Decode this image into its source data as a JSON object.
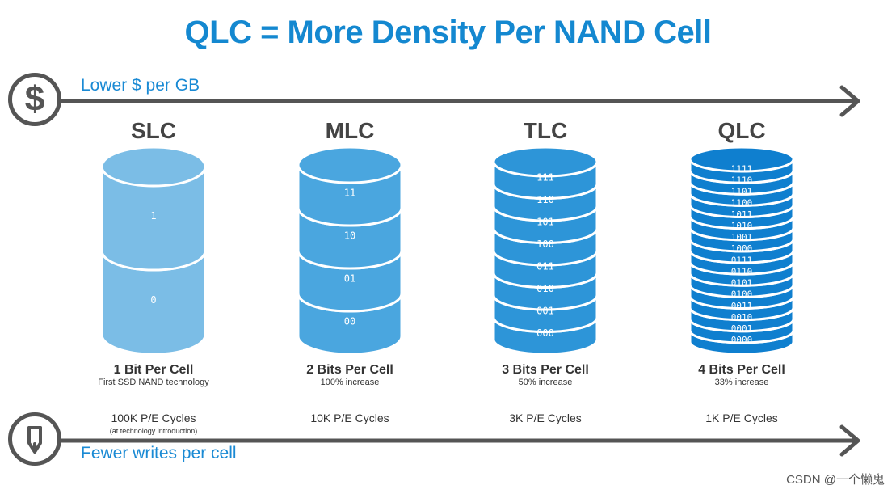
{
  "title": "QLC = More Density Per NAND Cell",
  "top_axis": {
    "label": "Lower $ per GB",
    "icon": "dollar-icon"
  },
  "bottom_axis": {
    "label": "Fewer writes per cell",
    "icon": "pencil-icon"
  },
  "watermark": "CSDN @一个懒鬼",
  "colors": {
    "title": "#1488d0",
    "arrow": "#555555",
    "slc": "#7bbde6",
    "mlc": "#4aa6df",
    "tlc": "#2d95d8",
    "qlc": "#0f7fcf"
  },
  "columns": [
    {
      "name": "SLC",
      "bits_title": "1 Bit Per Cell",
      "bits_sub": "First SSD NAND technology",
      "pe_cycles": "100K P/E Cycles",
      "pe_note": "(at technology introduction)",
      "cells": [
        "1",
        "0"
      ]
    },
    {
      "name": "MLC",
      "bits_title": "2 Bits Per Cell",
      "bits_sub": "100% increase",
      "pe_cycles": "10K P/E Cycles",
      "cells": [
        "11",
        "10",
        "01",
        "00"
      ]
    },
    {
      "name": "TLC",
      "bits_title": "3 Bits Per Cell",
      "bits_sub": "50% increase",
      "pe_cycles": "3K P/E Cycles",
      "cells": [
        "111",
        "110",
        "101",
        "100",
        "011",
        "010",
        "001",
        "000"
      ]
    },
    {
      "name": "QLC",
      "bits_title": "4 Bits Per Cell",
      "bits_sub": "33% increase",
      "pe_cycles": "1K P/E Cycles",
      "cells": [
        "1111",
        "1110",
        "1101",
        "1100",
        "1011",
        "1010",
        "1001",
        "1000",
        "0111",
        "0110",
        "0101",
        "0100",
        "0011",
        "0010",
        "0001",
        "0000"
      ]
    }
  ]
}
